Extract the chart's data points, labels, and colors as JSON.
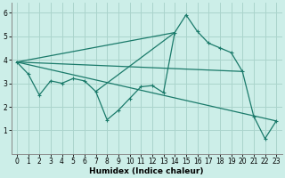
{
  "bg_color": "#cceee8",
  "grid_color": "#aad4cc",
  "line_color": "#1a7a6a",
  "xlabel": "Humidex (Indice chaleur)",
  "xlim": [
    -0.5,
    23.5
  ],
  "ylim": [
    0,
    6.4
  ],
  "xticks": [
    0,
    1,
    2,
    3,
    4,
    5,
    6,
    7,
    8,
    9,
    10,
    11,
    12,
    13,
    14,
    15,
    16,
    17,
    18,
    19,
    20,
    21,
    22,
    23
  ],
  "yticks": [
    1,
    2,
    3,
    4,
    5,
    6
  ],
  "zigzag": {
    "x": [
      0,
      1,
      2,
      3,
      4,
      5,
      6,
      7,
      8,
      9,
      10,
      11,
      12,
      13,
      14,
      15,
      16,
      17,
      18,
      19,
      20,
      21,
      22,
      23
    ],
    "y": [
      3.9,
      3.4,
      2.5,
      3.1,
      3.0,
      3.2,
      3.1,
      2.65,
      1.45,
      1.85,
      2.35,
      2.85,
      2.9,
      2.6,
      5.15,
      5.9,
      5.2,
      4.7,
      4.5,
      4.3,
      3.5,
      1.6,
      0.65,
      1.4
    ]
  },
  "line1": {
    "x": [
      0,
      23
    ],
    "y": [
      3.9,
      1.4
    ]
  },
  "line2": {
    "x": [
      0,
      20
    ],
    "y": [
      3.9,
      3.5
    ]
  },
  "line3": {
    "x": [
      0,
      14
    ],
    "y": [
      3.9,
      5.15
    ]
  },
  "line4": {
    "x": [
      7,
      14
    ],
    "y": [
      2.65,
      5.15
    ]
  }
}
